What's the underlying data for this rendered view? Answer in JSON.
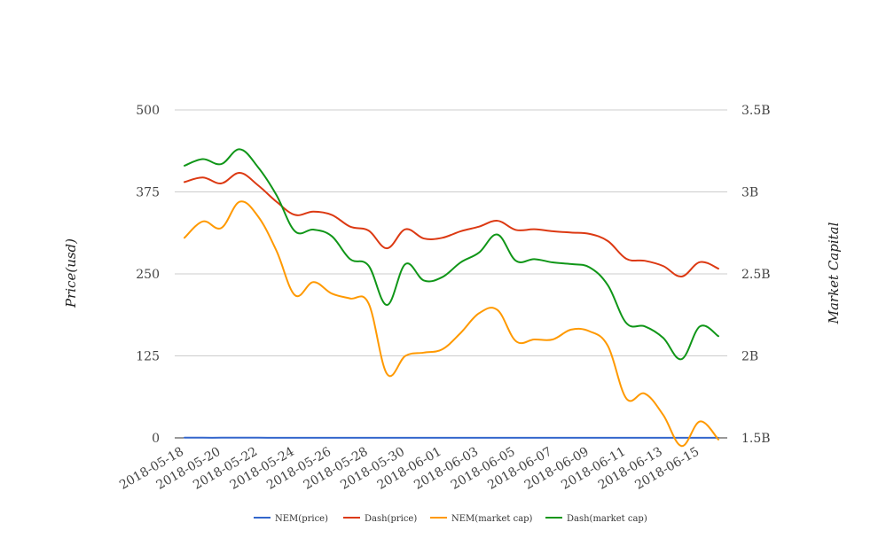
{
  "chart_data": {
    "type": "line",
    "title": "",
    "ylabel_left": "Price(usd)",
    "ylabel_right": "Market Capital",
    "ylim_left": [
      0,
      500
    ],
    "yticks_left": [
      "0",
      "125",
      "250",
      "375",
      "500"
    ],
    "yticks_left_values": [
      0,
      125,
      250,
      375,
      500
    ],
    "ylim_right": [
      1.5,
      3.5
    ],
    "yticks_right": [
      "1.5B",
      "2B",
      "2.5B",
      "3B",
      "3.5B"
    ],
    "yticks_right_values": [
      1.5,
      2,
      2.5,
      3,
      3.5
    ],
    "x": [
      "2018-05-18",
      "2018-05-19",
      "2018-05-20",
      "2018-05-21",
      "2018-05-22",
      "2018-05-23",
      "2018-05-24",
      "2018-05-25",
      "2018-05-26",
      "2018-05-27",
      "2018-05-28",
      "2018-05-29",
      "2018-05-30",
      "2018-05-31",
      "2018-06-01",
      "2018-06-02",
      "2018-06-03",
      "2018-06-04",
      "2018-06-05",
      "2018-06-06",
      "2018-06-07",
      "2018-06-08",
      "2018-06-09",
      "2018-06-10",
      "2018-06-11",
      "2018-06-12",
      "2018-06-13",
      "2018-06-14",
      "2018-06-15",
      "2018-06-16"
    ],
    "xticks": [
      "2018-05-18",
      "2018-05-20",
      "2018-05-22",
      "2018-05-24",
      "2018-05-26",
      "2018-05-28",
      "2018-05-30",
      "2018-06-01",
      "2018-06-03",
      "2018-06-05",
      "2018-06-07",
      "2018-06-09",
      "2018-06-11",
      "2018-06-13",
      "2018-06-15"
    ],
    "grid": true,
    "legend_position": "bottom",
    "series": [
      {
        "name": "NEM(price)",
        "axis": "left",
        "color": "#3366cc",
        "values": [
          0.25,
          0.26,
          0.25,
          0.27,
          0.26,
          0.24,
          0.22,
          0.23,
          0.22,
          0.21,
          0.21,
          0.18,
          0.19,
          0.19,
          0.2,
          0.21,
          0.22,
          0.22,
          0.2,
          0.2,
          0.2,
          0.2,
          0.2,
          0.19,
          0.16,
          0.16,
          0.15,
          0.14,
          0.15,
          0.14
        ]
      },
      {
        "name": "Dash(price)",
        "axis": "left",
        "color": "#dc3912",
        "values": [
          390,
          397,
          388,
          404,
          385,
          360,
          340,
          345,
          340,
          322,
          316,
          289,
          318,
          304,
          305,
          315,
          322,
          331,
          317,
          318,
          315,
          313,
          311,
          300,
          273,
          270,
          262,
          246,
          268,
          258
        ]
      },
      {
        "name": "NEM(market cap)",
        "axis": "right",
        "color": "#ff9900",
        "values": [
          2.72,
          2.82,
          2.78,
          2.94,
          2.85,
          2.64,
          2.37,
          2.45,
          2.38,
          2.35,
          2.32,
          1.89,
          2.0,
          2.02,
          2.04,
          2.14,
          2.26,
          2.28,
          2.09,
          2.1,
          2.1,
          2.16,
          2.15,
          2.06,
          1.74,
          1.77,
          1.64,
          1.45,
          1.6,
          1.49
        ]
      },
      {
        "name": "Dash(market cap)",
        "axis": "right",
        "color": "#109618",
        "values": [
          3.16,
          3.2,
          3.17,
          3.26,
          3.15,
          2.98,
          2.76,
          2.77,
          2.73,
          2.59,
          2.55,
          2.31,
          2.56,
          2.46,
          2.48,
          2.57,
          2.63,
          2.74,
          2.58,
          2.59,
          2.57,
          2.56,
          2.54,
          2.43,
          2.2,
          2.18,
          2.11,
          1.98,
          2.18,
          2.12
        ]
      }
    ]
  }
}
